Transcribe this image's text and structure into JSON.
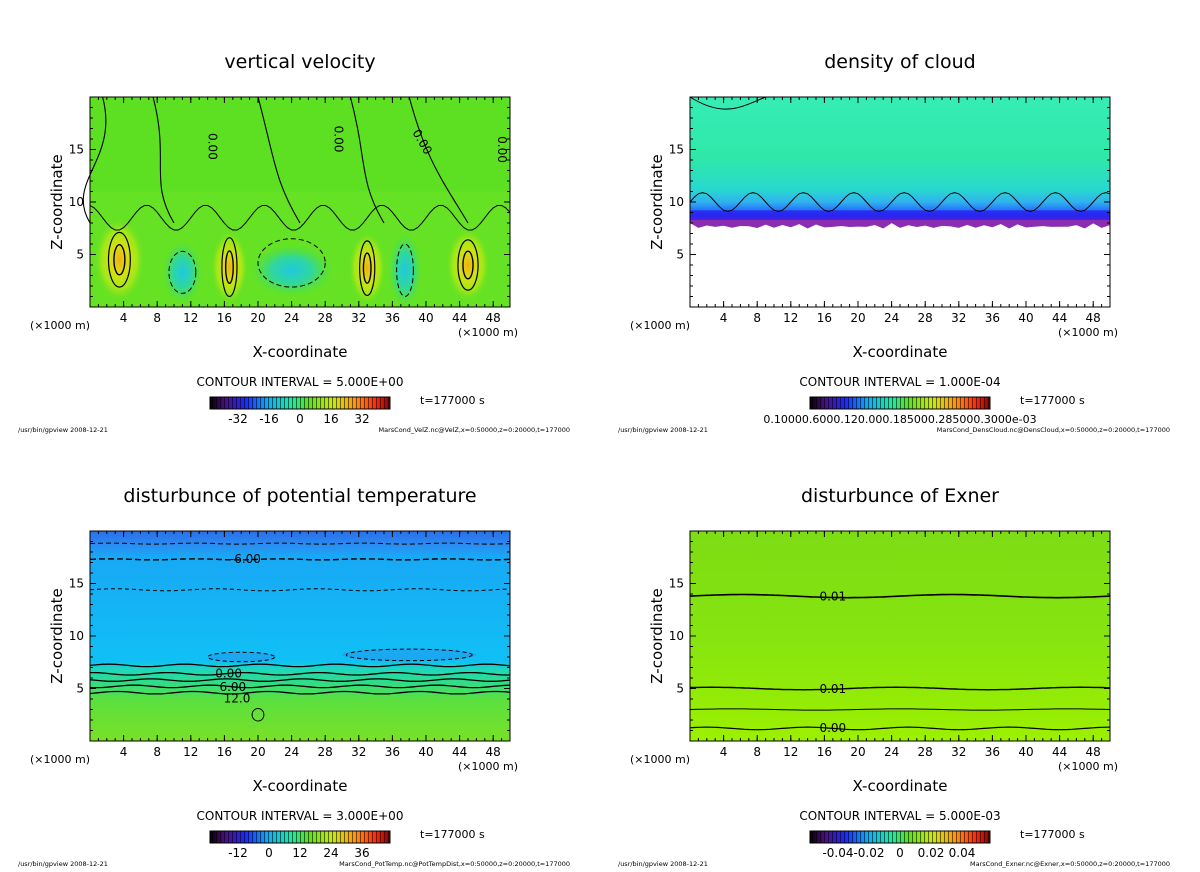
{
  "chart_data": [
    {
      "id": "velz",
      "type": "heatmap",
      "title": "vertical velocity",
      "xlabel": "X-coordinate",
      "ylabel": "Z-coordinate",
      "x_unit_left": "(×1000 m)",
      "x_unit_right": "(×1000 m)",
      "xlim": [
        0,
        50
      ],
      "ylim": [
        0,
        20
      ],
      "x_ticks": [
        "4",
        "8",
        "12",
        "16",
        "20",
        "24",
        "28",
        "32",
        "36",
        "40",
        "44",
        "48"
      ],
      "y_ticks": [
        "5",
        "10",
        "15"
      ],
      "contour_labels": [
        "0.00",
        "0.00",
        "0.00",
        "0.00"
      ],
      "contour_interval": "CONTOUR INTERVAL = 5.000E+00",
      "colorbar_ticks": [
        "-32",
        "-16",
        "0",
        "16",
        "32"
      ],
      "time": "t=177000 s",
      "footer_left": "/usr/bin/gpview   2008-12-21",
      "footer_right": "MarsCond_VelZ.nc@VelZ,x=0:50000,z=0:20000,t=177000",
      "colors": {
        "field": "#5ee022",
        "high": "#b8e815",
        "low": "#3fd872"
      }
    },
    {
      "id": "cloud",
      "type": "heatmap",
      "title": "density of cloud",
      "xlabel": "X-coordinate",
      "ylabel": "Z-coordinate",
      "x_unit_left": "(×1000 m)",
      "x_unit_right": "(×1000 m)",
      "xlim": [
        0,
        50
      ],
      "ylim": [
        0,
        20
      ],
      "x_ticks": [
        "4",
        "8",
        "12",
        "16",
        "20",
        "24",
        "28",
        "32",
        "36",
        "40",
        "44",
        "48"
      ],
      "y_ticks": [
        "5",
        "10",
        "15"
      ],
      "contour_interval": "CONTOUR INTERVAL = 1.000E-04",
      "colorbar_ticks": [
        "0.10000.6000.120.000.185000.285000.3000e-03"
      ],
      "time": "t=177000 s",
      "footer_left": "/usr/bin/gpview   2008-12-21",
      "footer_right": "MarsCond_DensCloud.nc@DensCloud,x=0:50000,z=0:20000,t=177000",
      "colors": {
        "field": "#2ee8a0",
        "edge": "#1f3cff",
        "base": "#8a2db0"
      }
    },
    {
      "id": "pottemp",
      "type": "heatmap",
      "title": "disturbunce of potential temperature",
      "xlabel": "X-coordinate",
      "ylabel": "Z-coordinate",
      "x_unit_left": "(×1000 m)",
      "x_unit_right": "(×1000 m)",
      "xlim": [
        0,
        50
      ],
      "ylim": [
        0,
        20
      ],
      "x_ticks": [
        "4",
        "8",
        "12",
        "16",
        "20",
        "24",
        "28",
        "32",
        "36",
        "40",
        "44",
        "48"
      ],
      "y_ticks": [
        "5",
        "10",
        "15"
      ],
      "contour_labels": [
        "-6.00",
        "0.00",
        "6.00",
        "12.0"
      ],
      "contour_interval": "CONTOUR INTERVAL = 3.000E+00",
      "colorbar_ticks": [
        "-12",
        "0",
        "12",
        "24",
        "36"
      ],
      "time": "t=177000 s",
      "footer_left": "/usr/bin/gpview   2008-12-21",
      "footer_right": "MarsCond_PotTemp.nc@PotTempDist,x=0:50000,z=0:20000,t=177000",
      "colors": {
        "top": "#2a7ef0",
        "mid": "#19b0f5",
        "low": "#40d680",
        "bottom": "#7ae025"
      }
    },
    {
      "id": "exner",
      "type": "heatmap",
      "title": "disturbunce of Exner",
      "xlabel": "X-coordinate",
      "ylabel": "Z-coordinate",
      "x_unit_left": "(×1000 m)",
      "x_unit_right": "(×1000 m)",
      "xlim": [
        0,
        50
      ],
      "ylim": [
        0,
        20
      ],
      "x_ticks": [
        "4",
        "8",
        "12",
        "16",
        "20",
        "24",
        "28",
        "32",
        "36",
        "40",
        "44",
        "48"
      ],
      "y_ticks": [
        "5",
        "10",
        "15"
      ],
      "contour_labels": [
        "0.01",
        "0.01",
        "0.00"
      ],
      "contour_interval": "CONTOUR INTERVAL = 5.000E-03",
      "colorbar_ticks": [
        "-0.04",
        "-0.02",
        "0",
        "0.02",
        "0.04"
      ],
      "time": "t=177000 s",
      "footer_left": "/usr/bin/gpview   2008-12-21",
      "footer_right": "MarsCond_Exner.nc@Exner,x=0:50000,z=0:20000,t=177000",
      "colors": {
        "upper": "#7fe012",
        "lower": "#96f000"
      }
    }
  ]
}
